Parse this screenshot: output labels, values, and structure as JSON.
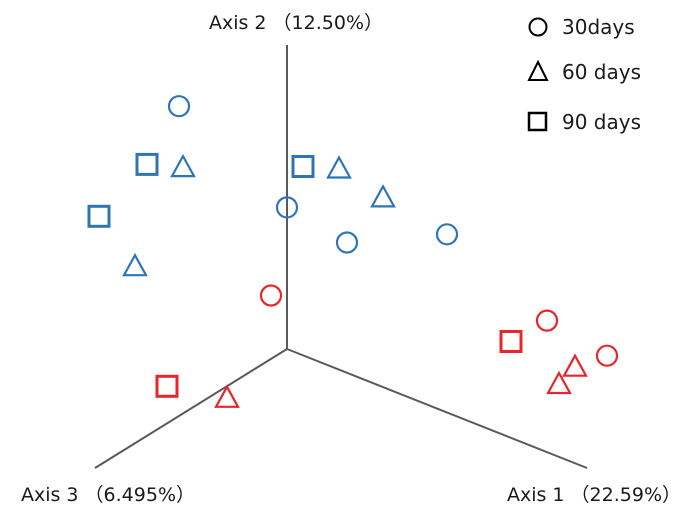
{
  "chart_data": {
    "type": "scatter",
    "title": "",
    "axes": [
      {
        "id": "axis1",
        "label": "Axis 1 （22.59%）"
      },
      {
        "id": "axis2",
        "label": "Axis 2 （12.50%）"
      },
      {
        "id": "axis3",
        "label": "Axis 3 （6.495%）"
      }
    ],
    "legend": {
      "placement": "top-right",
      "entries": [
        {
          "label": "30days",
          "shape": "circle"
        },
        {
          "label": "60 days",
          "shape": "triangle"
        },
        {
          "label": "90 days",
          "shape": "square"
        }
      ]
    },
    "groups": [
      {
        "color": "#2e75b6"
      },
      {
        "color": "#e8252a"
      }
    ],
    "points": [
      {
        "group": 0,
        "shape": "circle",
        "a1": -0.6,
        "a2": 0.9,
        "a3": 0.1
      },
      {
        "group": 0,
        "shape": "circle",
        "a1": 0.85,
        "a2": 0.65,
        "a3": -0.2
      },
      {
        "group": 0,
        "shape": "circle",
        "a1": 0.0,
        "a2": 0.6,
        "a3": 0.0
      },
      {
        "group": 0,
        "shape": "circle",
        "a1": 0.3,
        "a2": 0.5,
        "a3": -0.1
      },
      {
        "group": 0,
        "shape": "triangle",
        "a1": 0.25,
        "a2": 0.8,
        "a3": -0.1
      },
      {
        "group": 0,
        "shape": "triangle",
        "a1": 0.45,
        "a2": 0.7,
        "a3": -0.2
      },
      {
        "group": 0,
        "shape": "triangle",
        "a1": -0.5,
        "a2": 0.7,
        "a3": 0.2
      },
      {
        "group": 0,
        "shape": "triangle",
        "a1": -0.8,
        "a2": 0.2,
        "a3": 0.2
      },
      {
        "group": 0,
        "shape": "square",
        "a1": 0.1,
        "a2": 0.8,
        "a3": 0.0
      },
      {
        "group": 0,
        "shape": "square",
        "a1": -0.8,
        "a2": 0.6,
        "a3": 0.1
      },
      {
        "group": 0,
        "shape": "square",
        "a1": -1.1,
        "a2": 0.3,
        "a3": 0.1
      },
      {
        "group": 1,
        "shape": "circle",
        "a1": 1.4,
        "a2": 0.4,
        "a3": -0.3
      },
      {
        "group": 1,
        "shape": "circle",
        "a1": 1.7,
        "a2": 0.3,
        "a3": -0.4
      },
      {
        "group": 1,
        "shape": "circle",
        "a1": -0.1,
        "a2": 0.2,
        "a3": 0.0
      },
      {
        "group": 1,
        "shape": "triangle",
        "a1": 1.5,
        "a2": 0.2,
        "a3": -0.4
      },
      {
        "group": 1,
        "shape": "triangle",
        "a1": 1.4,
        "a2": 0.1,
        "a3": -0.4
      },
      {
        "group": 1,
        "shape": "triangle",
        "a1": 0.0,
        "a2": -0.05,
        "a3": 0.5
      },
      {
        "group": 1,
        "shape": "square",
        "a1": 1.1,
        "a2": 0.2,
        "a3": -0.4
      },
      {
        "group": 1,
        "shape": "square",
        "a1": -0.3,
        "a2": -0.05,
        "a3": 0.6
      }
    ]
  }
}
